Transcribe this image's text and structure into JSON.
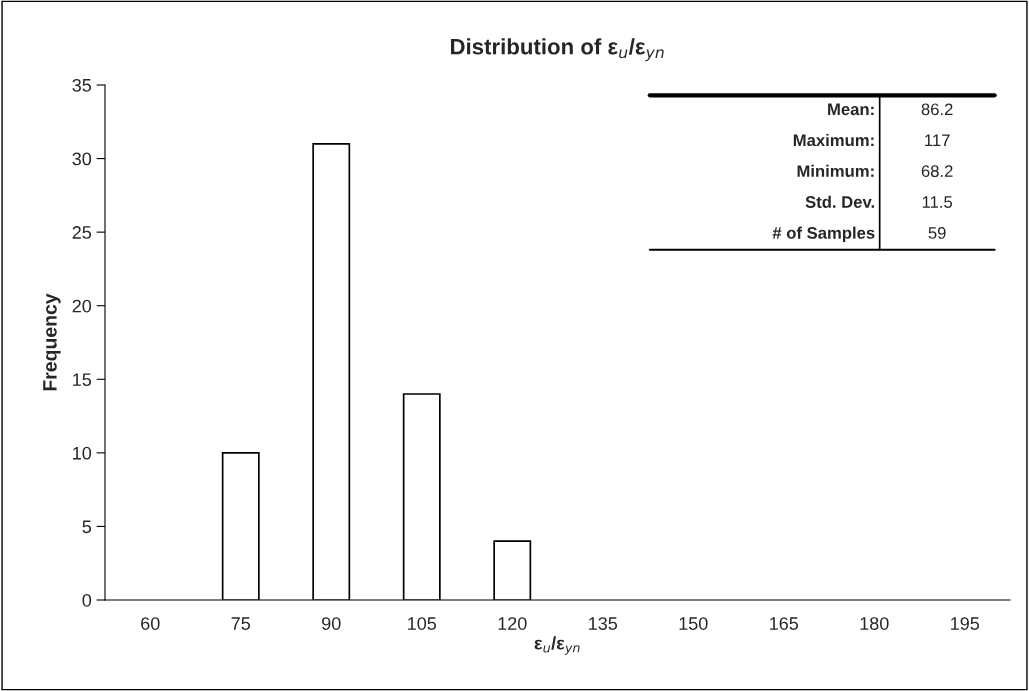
{
  "chart_data": {
    "type": "bar",
    "title": "Distribution of ε$_{u}$/ε$_{yn}$",
    "xlabel": "ε$_{u}$/ε$_{yn}$",
    "ylabel": "Frequency",
    "categories": [
      "60",
      "75",
      "90",
      "105",
      "120",
      "135",
      "150",
      "165",
      "180",
      "195"
    ],
    "values": [
      0,
      10,
      31,
      14,
      4,
      0,
      0,
      0,
      0,
      0
    ],
    "color": "#ffffff",
    "ylim": [
      0,
      35
    ],
    "yticks": [
      0,
      5,
      10,
      15,
      20,
      25,
      30,
      35
    ],
    "grid": false,
    "legend": false,
    "annotations": [
      "Mean:",
      "86.2",
      "Maximum:",
      "117",
      "Minimum:",
      "68.2",
      "Std. Dev.",
      "11.5",
      "# of Samples",
      "59"
    ]
  }
}
